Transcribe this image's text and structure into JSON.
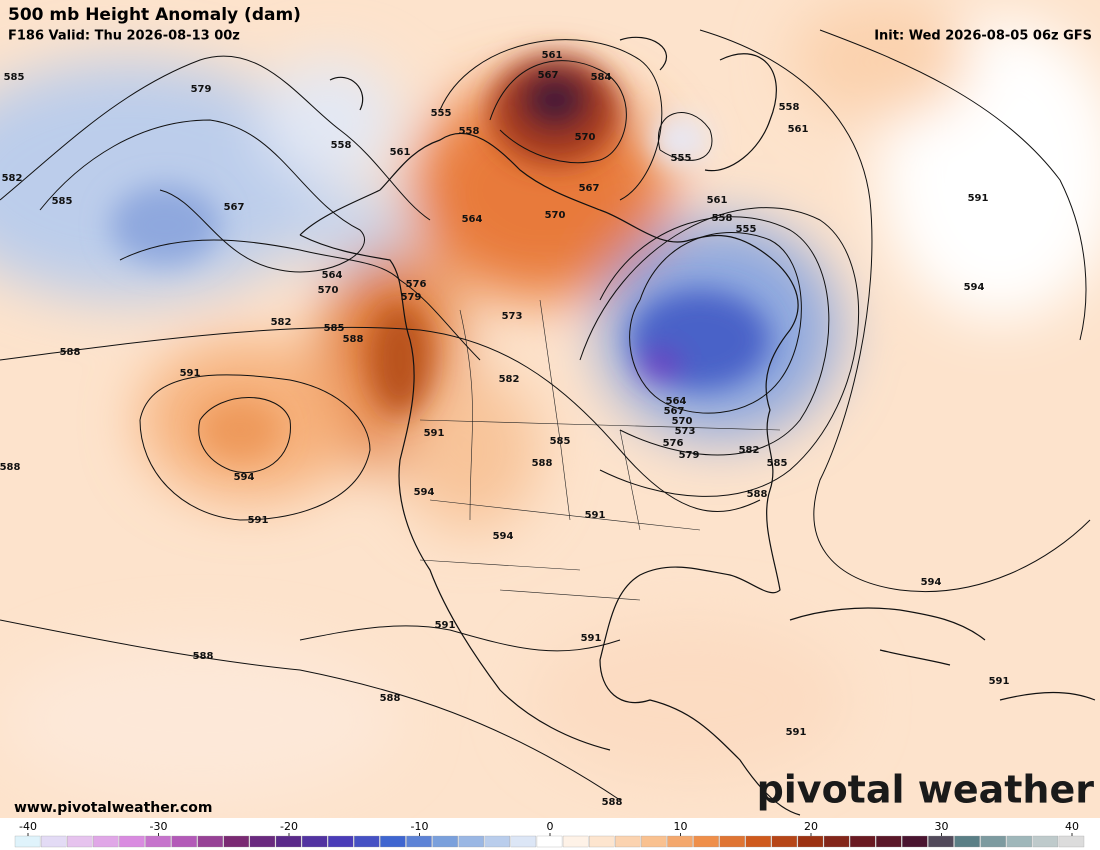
{
  "header": {
    "title": "500 mb Height Anomaly (dam)",
    "valid": "F186 Valid: Thu 2026-08-13 00z",
    "init": "Init: Wed 2026-08-05 06z GFS"
  },
  "footer": {
    "website": "www.pivotalweather.com",
    "logo": "pivotal weather"
  },
  "colorbar": {
    "ticks": [
      -40,
      -30,
      -20,
      -10,
      0,
      10,
      20,
      30,
      40
    ],
    "colors": [
      "#dff3fb",
      "#e6c3ee",
      "#d98be0",
      "#b35ab8",
      "#7a2a73",
      "#5a2a8a",
      "#4a3cb8",
      "#3f66d0",
      "#7aa0dc",
      "#b9cdec",
      "#ffffff",
      "#fde5cf",
      "#f9c190",
      "#ef8f4a",
      "#cf5a1d",
      "#9c3212",
      "#6a1a22",
      "#4a1530",
      "#5a7f86",
      "#9fb7ba",
      "#dcdcdc"
    ]
  },
  "contour_labels": [
    585,
    579,
    582,
    585,
    567,
    564,
    570,
    582,
    585,
    588,
    588,
    591,
    594,
    591,
    588,
    561,
    567,
    584,
    555,
    558,
    561,
    558,
    564,
    570,
    567,
    570,
    558,
    561,
    555,
    561,
    558,
    555,
    591,
    594,
    576,
    579,
    573,
    582,
    591,
    585,
    588,
    594,
    594,
    591,
    564,
    567,
    570,
    573,
    576,
    579,
    582,
    585,
    588,
    594,
    591,
    591,
    588,
    588,
    591,
    591,
    588
  ]
}
